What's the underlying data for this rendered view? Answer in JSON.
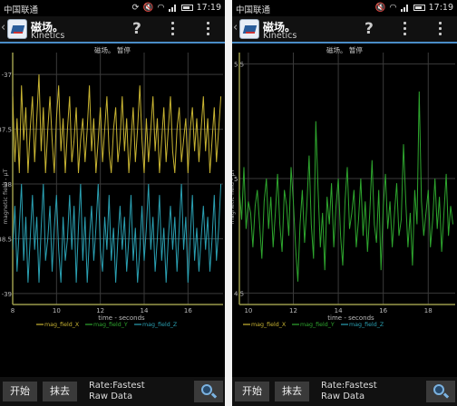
{
  "status_bar": {
    "carrier": "中国联通",
    "time": "17:19"
  },
  "action_bar": {
    "title": "磁场。",
    "subtitle": "Kinetics",
    "help_label": "?"
  },
  "bottom_bar": {
    "start_label": "开始",
    "clear_label": "抹去",
    "rate_line1": "Rate:Fastest",
    "rate_line2": "Raw Data"
  },
  "colors": {
    "mag_x": "#c8b432",
    "mag_y": "#2ea62e",
    "mag_z": "#2aa0b2",
    "axis": "#9a9a4a",
    "grid": "#3a3a3a",
    "accent": "#4a8cc7"
  },
  "chart_data": [
    {
      "type": "line",
      "title": "磁场。 暂停",
      "xlabel": "time - seconds",
      "ylabel": "magnetic field - μT",
      "xlim": [
        8,
        17.6
      ],
      "ylim": [
        -39.1,
        -36.8
      ],
      "xticks": [
        "8",
        "10",
        "12",
        "14",
        "16"
      ],
      "xtick_values": [
        8,
        10,
        12,
        14,
        16
      ],
      "yticks": [
        "-37",
        "-37.5",
        "-38",
        "-38.5",
        "-39"
      ],
      "ytick_values": [
        -37,
        -37.5,
        -38,
        -38.5,
        -39
      ],
      "legend": [
        "mag_field_X",
        "mag_field_Y",
        "mag_field_Z"
      ],
      "legend_position": "bottom",
      "series": [
        {
          "name": "mag_field_X",
          "color_key": "mag_x",
          "x_start": 8.0,
          "x_step": 0.1,
          "values": [
            -37.2,
            -37.8,
            -37.4,
            -37.9,
            -37.1,
            -37.6,
            -37.3,
            -37.9,
            -37.5,
            -37.2,
            -37.8,
            -37.4,
            -37.0,
            -37.7,
            -37.3,
            -37.9,
            -37.5,
            -37.2,
            -37.6,
            -37.9,
            -37.4,
            -37.1,
            -37.7,
            -37.4,
            -37.9,
            -37.5,
            -37.2,
            -37.8,
            -37.6,
            -37.3,
            -37.9,
            -37.6,
            -37.4,
            -37.8,
            -37.5,
            -37.1,
            -37.7,
            -37.4,
            -37.9,
            -37.6,
            -37.3,
            -37.8,
            -37.5,
            -37.2,
            -37.7,
            -37.9,
            -37.5,
            -37.3,
            -37.8,
            -37.6,
            -37.2,
            -37.7,
            -37.4,
            -37.9,
            -37.6,
            -37.3,
            -37.8,
            -37.5,
            -37.1,
            -37.6,
            -37.9,
            -37.4,
            -37.8,
            -37.5,
            -37.2,
            -37.7,
            -37.4,
            -37.9,
            -37.6,
            -37.3,
            -37.8,
            -37.5,
            -37.2,
            -37.7,
            -37.9,
            -37.5,
            -37.3,
            -37.8,
            -37.6,
            -37.4,
            -37.9,
            -37.5,
            -37.3,
            -37.7,
            -37.4,
            -37.8,
            -37.5,
            -37.2,
            -37.7,
            -37.4,
            -37.9,
            -37.6,
            -37.3,
            -37.8,
            -37.5,
            -37.2
          ]
        },
        {
          "name": "mag_field_Y",
          "color_key": "mag_y",
          "x_start": 8.0,
          "x_step": 0.1,
          "values": []
        },
        {
          "name": "mag_field_Z",
          "color_key": "mag_z",
          "x_start": 8.0,
          "x_step": 0.1,
          "values": [
            -38.6,
            -38.2,
            -38.8,
            -38.4,
            -38.0,
            -38.7,
            -38.3,
            -38.9,
            -38.5,
            -38.1,
            -38.6,
            -38.3,
            -38.9,
            -38.4,
            -38.0,
            -38.7,
            -38.5,
            -38.2,
            -38.8,
            -38.4,
            -38.1,
            -38.6,
            -38.9,
            -38.3,
            -38.7,
            -38.5,
            -38.1,
            -38.6,
            -38.2,
            -38.9,
            -38.4,
            -38.0,
            -38.7,
            -38.3,
            -38.9,
            -38.5,
            -38.2,
            -38.7,
            -38.4,
            -38.0,
            -38.6,
            -38.8,
            -38.3,
            -38.6,
            -38.1,
            -38.7,
            -38.4,
            -38.9,
            -38.5,
            -38.2,
            -38.6,
            -38.3,
            -38.8,
            -38.5,
            -38.1,
            -38.7,
            -38.4,
            -38.9,
            -38.6,
            -38.2,
            -38.7,
            -38.4,
            -38.0,
            -38.6,
            -38.3,
            -38.8,
            -38.5,
            -38.1,
            -38.7,
            -38.4,
            -38.9,
            -38.5,
            -38.2,
            -38.6,
            -38.3,
            -38.8,
            -38.4,
            -38.0,
            -38.6,
            -38.3,
            -38.9,
            -38.5,
            -38.1,
            -38.7,
            -38.4,
            -38.8,
            -38.5,
            -38.2,
            -38.6,
            -38.3,
            -38.8,
            -38.5,
            -38.1,
            -38.7,
            -38.4,
            -38.0
          ]
        }
      ]
    },
    {
      "type": "line",
      "title": "磁场。 暂停",
      "xlabel": "time - seconds",
      "ylabel": "magnetic field - μT",
      "xlim": [
        9.6,
        19.2
      ],
      "ylim": [
        4.45,
        5.55
      ],
      "xticks": [
        "10",
        "12",
        "14",
        "16",
        "18"
      ],
      "xtick_values": [
        10,
        12,
        14,
        16,
        18
      ],
      "yticks": [
        "5.5",
        "5",
        "4.5"
      ],
      "ytick_values": [
        5.5,
        5,
        4.5
      ],
      "legend": [
        "mag_field_X",
        "mag_field_Y",
        "mag_field_Z"
      ],
      "legend_position": "bottom",
      "series": [
        {
          "name": "mag_field_X",
          "color_key": "mag_x",
          "x_start": 9.6,
          "x_step": 0.1,
          "values": []
        },
        {
          "name": "mag_field_Y",
          "color_key": "mag_y",
          "x_start": 9.6,
          "x_step": 0.1,
          "values": [
            4.95,
            4.82,
            5.05,
            4.78,
            4.9,
            4.85,
            4.7,
            4.88,
            4.95,
            4.8,
            4.65,
            4.9,
            5.0,
            4.78,
            4.92,
            4.7,
            4.85,
            5.02,
            4.8,
            4.68,
            4.95,
            4.88,
            4.75,
            5.05,
            4.9,
            4.7,
            4.55,
            4.8,
            4.95,
            4.72,
            4.88,
            5.1,
            4.8,
            4.65,
            5.25,
            4.95,
            4.7,
            4.85,
            4.6,
            4.92,
            4.8,
            4.98,
            4.7,
            4.88,
            5.0,
            4.75,
            4.62,
            4.9,
            5.05,
            4.78,
            4.85,
            4.95,
            4.7,
            4.82,
            5.0,
            4.75,
            4.9,
            4.68,
            4.85,
            5.08,
            4.8,
            4.72,
            4.95,
            4.6,
            4.88,
            5.02,
            4.78,
            4.9,
            4.7,
            4.85,
            4.98,
            4.75,
            4.82,
            5.15,
            4.9,
            4.7,
            4.85,
            4.62,
            4.95,
            4.8,
            5.38,
            4.9,
            4.75,
            4.85,
            4.95,
            4.7,
            4.82,
            5.0,
            4.78,
            4.92,
            4.68,
            4.85,
            5.02,
            4.75,
            4.88,
            4.8
          ]
        },
        {
          "name": "mag_field_Z",
          "color_key": "mag_z",
          "x_start": 9.6,
          "x_step": 0.1,
          "values": []
        }
      ]
    }
  ]
}
